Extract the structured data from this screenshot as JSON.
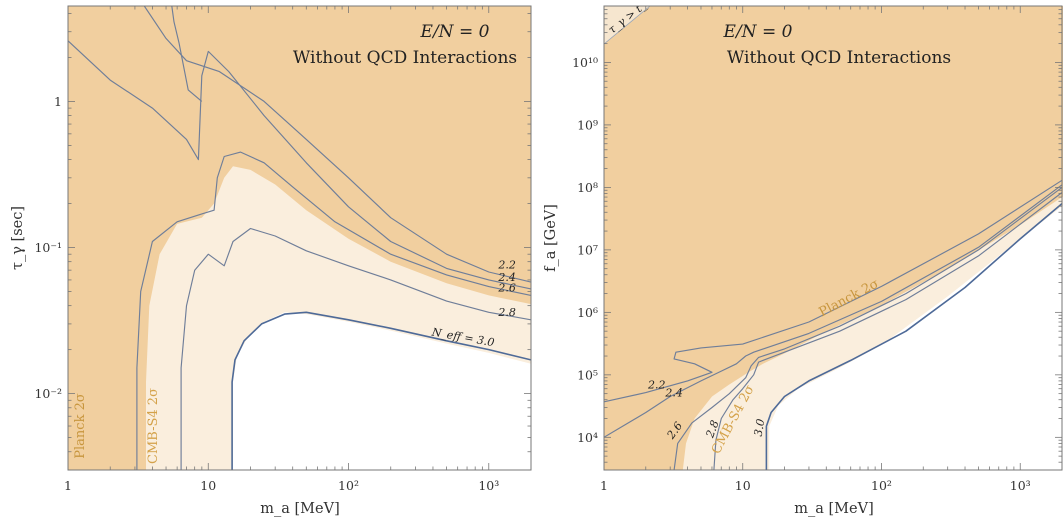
{
  "colors": {
    "planck_fill": "#f1cf9f",
    "cmbs4_fill": "#faeedd",
    "contour_line": "#6f7e99",
    "contour_line_strong": "#4e6a98",
    "planck_label": "#c8963e",
    "cmbs4_label": "#d4a24a",
    "axis": "#777777"
  },
  "chart_data": [
    {
      "type": "contour",
      "annotation_line1": "E/N = 0",
      "annotation_line2": "Without QCD Interactions",
      "xlabel": "m_a [MeV]",
      "ylabel": "τ_γ [sec]",
      "xscale": "log",
      "yscale": "log",
      "xlim": [
        1,
        2000
      ],
      "ylim": [
        0.003,
        4.5
      ],
      "x_ticks": [
        {
          "value": 1,
          "label": "1"
        },
        {
          "value": 10,
          "label": "10"
        },
        {
          "value": 100,
          "label": "10²"
        },
        {
          "value": 1000,
          "label": "10³"
        }
      ],
      "y_ticks": [
        {
          "value": 0.01,
          "label": "10⁻²"
        },
        {
          "value": 0.1,
          "label": "10⁻¹"
        },
        {
          "value": 1,
          "label": "1"
        }
      ],
      "region_labels": [
        {
          "text": "Planck 2σ",
          "x": 1.3,
          "y": 0.006,
          "rotate": -90,
          "color_key": "planck_label"
        },
        {
          "text": "CMB-S4 2σ",
          "x": 4.3,
          "y": 0.006,
          "rotate": -90,
          "color_key": "cmbs4_label"
        }
      ],
      "planck_boundary": [
        [
          3.6,
          0.003
        ],
        [
          3.6,
          0.012
        ],
        [
          3.8,
          0.04
        ],
        [
          4.5,
          0.09
        ],
        [
          6,
          0.145
        ],
        [
          9,
          0.16
        ],
        [
          11,
          0.2
        ],
        [
          13,
          0.3
        ],
        [
          15,
          0.36
        ],
        [
          20,
          0.34
        ],
        [
          30,
          0.27
        ],
        [
          50,
          0.18
        ],
        [
          100,
          0.115
        ],
        [
          200,
          0.08
        ],
        [
          500,
          0.057
        ],
        [
          1000,
          0.047
        ],
        [
          2000,
          0.041
        ]
      ],
      "cmbs4_boundary": [
        [
          15,
          0.003
        ],
        [
          15,
          0.012
        ],
        [
          16,
          0.018
        ],
        [
          19,
          0.024
        ],
        [
          25,
          0.031
        ],
        [
          35,
          0.036
        ],
        [
          50,
          0.035
        ],
        [
          100,
          0.031
        ],
        [
          200,
          0.027
        ],
        [
          500,
          0.022
        ],
        [
          1000,
          0.019
        ],
        [
          2000,
          0.016
        ]
      ],
      "contours": [
        {
          "label": "N_eff = 3.0",
          "strong": true,
          "points": [
            [
              14.8,
              0.003
            ],
            [
              14.8,
              0.012
            ],
            [
              15.5,
              0.017
            ],
            [
              18,
              0.023
            ],
            [
              24,
              0.03
            ],
            [
              35,
              0.035
            ],
            [
              50,
              0.036
            ],
            [
              100,
              0.032
            ],
            [
              200,
              0.028
            ],
            [
              500,
              0.023
            ],
            [
              1000,
              0.02
            ],
            [
              2000,
              0.017
            ]
          ]
        },
        {
          "label": "2.8",
          "points": [
            [
              6.4,
              0.003
            ],
            [
              6.4,
              0.015
            ],
            [
              7,
              0.04
            ],
            [
              8,
              0.07
            ],
            [
              10,
              0.09
            ],
            [
              13,
              0.075
            ],
            [
              15,
              0.11
            ],
            [
              20,
              0.135
            ],
            [
              30,
              0.12
            ],
            [
              50,
              0.095
            ],
            [
              100,
              0.075
            ],
            [
              200,
              0.06
            ],
            [
              500,
              0.043
            ],
            [
              1000,
              0.036
            ],
            [
              2000,
              0.032
            ]
          ]
        },
        {
          "label": "2.6",
          "points": [
            [
              3.1,
              0.003
            ],
            [
              3.1,
              0.015
            ],
            [
              3.3,
              0.05
            ],
            [
              4,
              0.11
            ],
            [
              6,
              0.15
            ],
            [
              9,
              0.17
            ],
            [
              11,
              0.18
            ],
            [
              11.6,
              0.3
            ],
            [
              13,
              0.42
            ],
            [
              17,
              0.45
            ],
            [
              25,
              0.38
            ],
            [
              40,
              0.26
            ],
            [
              80,
              0.15
            ],
            [
              200,
              0.09
            ],
            [
              500,
              0.065
            ],
            [
              1000,
              0.054
            ],
            [
              2000,
              0.047
            ]
          ]
        },
        {
          "label": "2.4",
          "points": [
            [
              1,
              2.6
            ],
            [
              2,
              1.4
            ],
            [
              4,
              0.9
            ],
            [
              7,
              0.55
            ],
            [
              8.5,
              0.4
            ],
            [
              9,
              1.5
            ],
            [
              10,
              2.2
            ],
            [
              14,
              1.6
            ],
            [
              25,
              0.8
            ],
            [
              50,
              0.38
            ],
            [
              100,
              0.19
            ],
            [
              200,
              0.11
            ],
            [
              500,
              0.072
            ],
            [
              1000,
              0.06
            ],
            [
              2000,
              0.052
            ]
          ]
        },
        {
          "label": "2.2",
          "points": [
            [
              3.5,
              4.5
            ],
            [
              5,
              2.7
            ],
            [
              7,
              1.9
            ],
            [
              12,
              1.6
            ],
            [
              25,
              1.0
            ],
            [
              50,
              0.55
            ],
            [
              100,
              0.3
            ],
            [
              200,
              0.16
            ],
            [
              500,
              0.09
            ],
            [
              1000,
              0.068
            ],
            [
              2000,
              0.058
            ]
          ]
        },
        {
          "label": "",
          "points": [
            [
              5.5,
              4.5
            ],
            [
              5.7,
              3.5
            ],
            [
              6.2,
              2.5
            ],
            [
              7.2,
              1.2
            ],
            [
              9,
              1.0
            ]
          ]
        }
      ],
      "contour_label_positions": [
        {
          "text": "2.2",
          "x": 1350,
          "y": 0.072
        },
        {
          "text": "2.4",
          "x": 1350,
          "y": 0.059
        },
        {
          "text": "2.6",
          "x": 1350,
          "y": 0.05
        },
        {
          "text": "2.8",
          "x": 1350,
          "y": 0.034
        },
        {
          "text": "N_eff = 3.0",
          "x": 650,
          "y": 0.023,
          "rotate": 10
        }
      ]
    },
    {
      "type": "contour",
      "annotation_line1": "E/N = 0",
      "annotation_line2": "Without QCD Interactions",
      "xlabel": "m_a [MeV]",
      "ylabel": "f_a [GeV]",
      "xscale": "log",
      "yscale": "log",
      "xlim": [
        1,
        2000
      ],
      "ylim": [
        3000,
        80000000000.0
      ],
      "x_ticks": [
        {
          "value": 1,
          "label": "1"
        },
        {
          "value": 10,
          "label": "10"
        },
        {
          "value": 100,
          "label": "10²"
        },
        {
          "value": 1000,
          "label": "10³"
        }
      ],
      "y_ticks": [
        {
          "value": 10000,
          "label": "10⁴"
        },
        {
          "value": 100000,
          "label": "10⁵"
        },
        {
          "value": 1000000,
          "label": "10⁶"
        },
        {
          "value": 10000000,
          "label": "10⁷"
        },
        {
          "value": 100000000,
          "label": "10⁸"
        },
        {
          "value": 1000000000,
          "label": "10⁹"
        },
        {
          "value": 10000000000,
          "label": "10¹⁰"
        }
      ],
      "corner_label": "τ_γ > t_CMB",
      "region_labels": [
        {
          "text": "Planck 2σ",
          "x": 60,
          "y": 1500000.0,
          "rotate": -28,
          "color_key": "planck_label"
        },
        {
          "text": "CMB-S4 2σ",
          "x": 9,
          "y": 18000,
          "rotate": -62,
          "color_key": "cmbs4_label"
        }
      ],
      "planck_boundary": [
        [
          3.7,
          3000
        ],
        [
          3.9,
          8000
        ],
        [
          4.5,
          20000
        ],
        [
          6,
          45000
        ],
        [
          8,
          70000
        ],
        [
          11,
          110000
        ],
        [
          14,
          150000
        ],
        [
          20,
          220000
        ],
        [
          40,
          500000
        ],
        [
          100,
          1300000.0
        ],
        [
          300,
          5000000.0
        ],
        [
          1000,
          25000000.0
        ],
        [
          2000,
          70000000.0
        ]
      ],
      "cmbs4_boundary": [
        [
          15.5,
          3000
        ],
        [
          15.5,
          15000
        ],
        [
          18,
          32000
        ],
        [
          25,
          60000
        ],
        [
          50,
          130000
        ],
        [
          100,
          300000
        ],
        [
          300,
          1800000.0
        ],
        [
          1000,
          15000000.0
        ],
        [
          2000,
          50000000.0
        ]
      ],
      "contours": [
        {
          "label": "3.0",
          "strong": true,
          "points": [
            [
              14.8,
              3000
            ],
            [
              14.8,
              15000
            ],
            [
              16,
              25000
            ],
            [
              20,
              45000
            ],
            [
              30,
              80000
            ],
            [
              60,
              170000
            ],
            [
              150,
              500000
            ],
            [
              400,
              2500000.0
            ],
            [
              1000,
              15000000.0
            ],
            [
              2000,
              55000000.0
            ]
          ]
        },
        {
          "label": "2.8",
          "points": [
            [
              6.2,
              3000
            ],
            [
              6.4,
              9000
            ],
            [
              7,
              20000
            ],
            [
              8.5,
              40000
            ],
            [
              10,
              60000
            ],
            [
              12,
              100000
            ],
            [
              13,
              160000
            ],
            [
              20,
              230000
            ],
            [
              50,
              500000
            ],
            [
              150,
              1600000.0
            ],
            [
              500,
              8000000.0
            ],
            [
              2000,
              83000000.0
            ]
          ]
        },
        {
          "label": "2.6",
          "points": [
            [
              3.2,
              3000
            ],
            [
              3.4,
              8000
            ],
            [
              4.3,
              17000
            ],
            [
              6,
              30000
            ],
            [
              8,
              50000
            ],
            [
              10.5,
              90000
            ],
            [
              11.5,
              140000
            ],
            [
              13,
              190000
            ],
            [
              20,
              260000
            ],
            [
              50,
              600000
            ],
            [
              150,
              2000000.0
            ],
            [
              500,
              10000000.0
            ],
            [
              2000,
              100000000.0
            ]
          ]
        },
        {
          "label": "2.4",
          "points": [
            [
              1,
              10000
            ],
            [
              2,
              25000
            ],
            [
              3,
              45000
            ],
            [
              5,
              80000
            ],
            [
              7,
              115000
            ],
            [
              9,
              150000
            ],
            [
              10.5,
              200000
            ],
            [
              12,
              230000
            ],
            [
              30,
              460000
            ],
            [
              100,
              1500000.0
            ],
            [
              500,
              11000000.0
            ],
            [
              2000,
              110000000.0
            ]
          ]
        },
        {
          "label": "2.2",
          "points": [
            [
              1,
              37000
            ],
            [
              2,
              52000
            ],
            [
              4,
              80000
            ],
            [
              6,
              110000
            ],
            [
              4.5,
              150000
            ],
            [
              3.2,
              180000
            ],
            [
              3.3,
              230000
            ],
            [
              5,
              270000
            ],
            [
              10,
              310000
            ],
            [
              30,
              700000
            ],
            [
              100,
              2600000.0
            ],
            [
              500,
              18000000.0
            ],
            [
              2000,
              130000000.0
            ]
          ]
        }
      ],
      "contour_label_positions": [
        {
          "text": "2.2",
          "x": 2.4,
          "y": 60000
        },
        {
          "text": "2.4",
          "x": 3.2,
          "y": 45000
        },
        {
          "text": "2.6",
          "x": 3.4,
          "y": 12000,
          "rotate": -55
        },
        {
          "text": "2.8",
          "x": 6.4,
          "y": 13000,
          "rotate": -70
        },
        {
          "text": "3.0",
          "x": 14,
          "y": 14000,
          "rotate": -80
        }
      ]
    }
  ]
}
